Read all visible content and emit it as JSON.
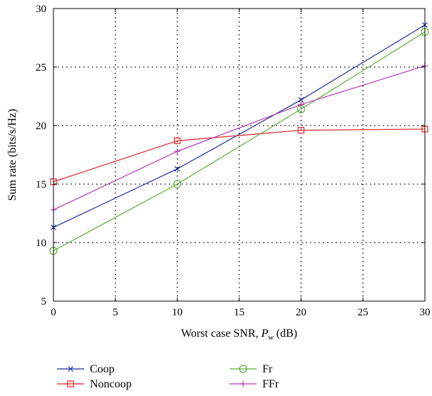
{
  "chart_data": {
    "type": "line",
    "title": "",
    "xlabel_prefix": "Worst case SNR, ",
    "xlabel_var": "P",
    "xlabel_sub": "w",
    "xlabel_suffix": " (dB)",
    "ylabel": "Sum rate (bits/s/Hz)",
    "xlim": [
      0,
      30
    ],
    "ylim": [
      5,
      30
    ],
    "xticks": [
      0,
      5,
      10,
      15,
      20,
      25,
      30
    ],
    "yticks": [
      5,
      10,
      15,
      20,
      25,
      30
    ],
    "grid": true,
    "legend_position": "bottom",
    "x": [
      0,
      10,
      20,
      30
    ],
    "series": [
      {
        "name": "Coop",
        "color": "#1f2f9c",
        "marker": "x",
        "values": [
          11.3,
          16.3,
          22.2,
          28.6
        ]
      },
      {
        "name": "Noncoop",
        "color": "#e0242a",
        "marker": "square",
        "values": [
          15.2,
          18.7,
          19.6,
          19.7
        ]
      },
      {
        "name": "Fr",
        "color": "#5ab033",
        "marker": "circle",
        "values": [
          9.3,
          15.0,
          21.4,
          28.0
        ]
      },
      {
        "name": "FFr",
        "color": "#b23db5",
        "marker": "plus",
        "values": [
          12.8,
          17.8,
          21.8,
          25.1
        ]
      }
    ]
  }
}
